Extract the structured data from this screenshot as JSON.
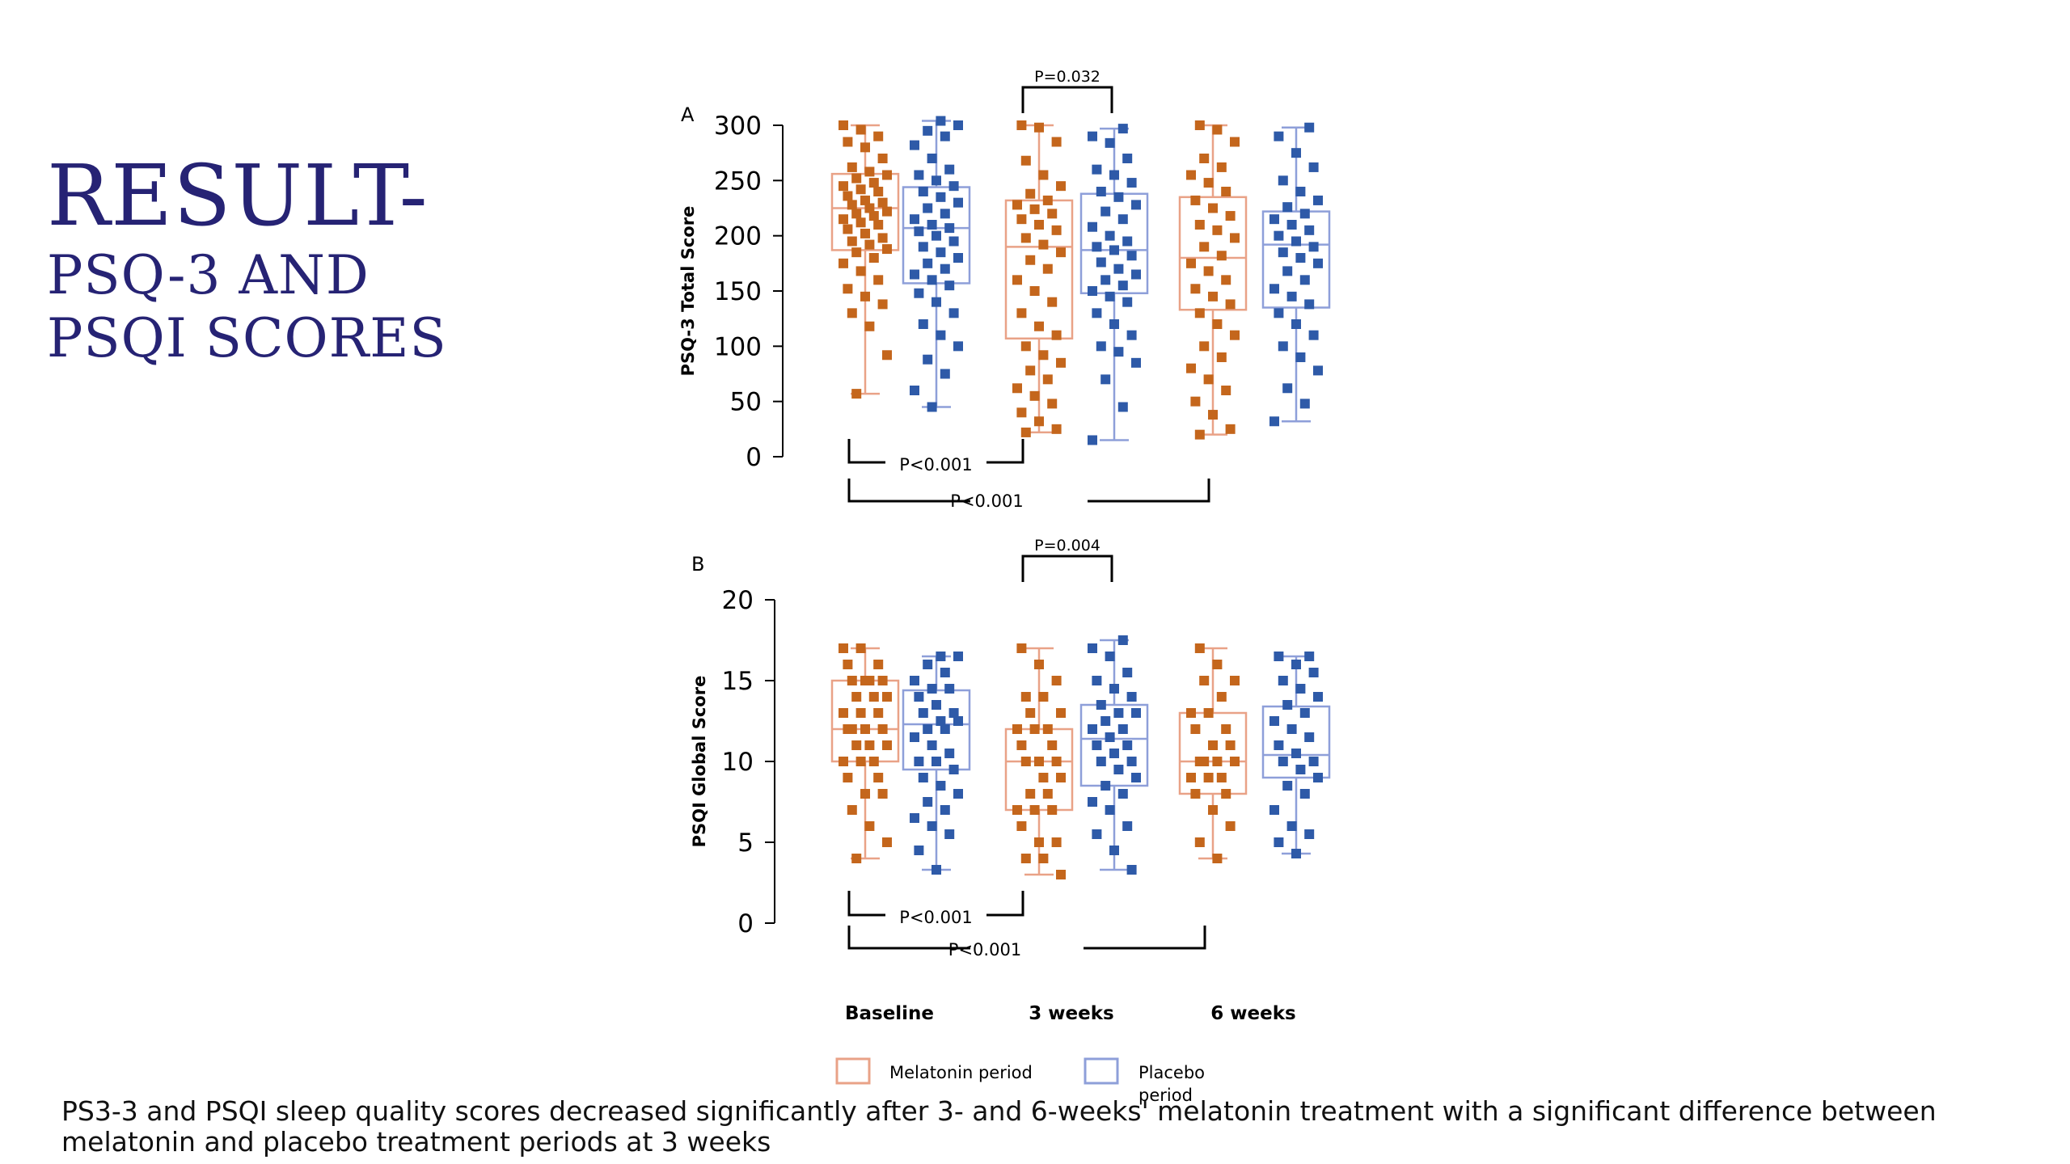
{
  "slide": {
    "title_line1": "RESULT-",
    "title_line2": "PSQ-3 AND",
    "title_line3": "PSQI SCORES",
    "caption": "PS3-3 and PSQI sleep quality scores decreased significantly after 3- and 6-weeks' melatonin treatment with a significant difference between melatonin and placebo treatment periods at 3 weeks"
  },
  "colors": {
    "melatonin_point": "#C4661C",
    "melatonin_box": "#E9A287",
    "placebo_point": "#2E5AA8",
    "placebo_box": "#8E9FD9",
    "axis": "#000000",
    "title": "#262374"
  },
  "chart_data": [
    {
      "type": "box",
      "panel_label": "A",
      "ylabel": "PSQ-3 Total Score",
      "ylim": [
        0,
        300
      ],
      "yticks": [
        0,
        50,
        100,
        150,
        200,
        250,
        300
      ],
      "groups": [
        "Baseline",
        "3 weeks",
        "6 weeks"
      ],
      "series": [
        {
          "name": "Melatonin period",
          "boxes": [
            {
              "min": 57,
              "q1": 187,
              "median": 225,
              "q3": 256,
              "max": 300,
              "points": [
                300,
                296,
                290,
                285,
                280,
                270,
                262,
                258,
                255,
                252,
                248,
                245,
                242,
                240,
                236,
                232,
                230,
                228,
                225,
                222,
                220,
                218,
                215,
                212,
                210,
                206,
                202,
                198,
                195,
                192,
                188,
                185,
                180,
                175,
                168,
                160,
                152,
                145,
                138,
                130,
                118,
                92,
                57
              ]
            },
            {
              "min": 22,
              "q1": 107,
              "median": 190,
              "q3": 232,
              "max": 300,
              "points": [
                300,
                298,
                285,
                268,
                255,
                245,
                238,
                232,
                228,
                224,
                220,
                215,
                210,
                205,
                198,
                192,
                185,
                178,
                170,
                160,
                150,
                140,
                130,
                118,
                110,
                100,
                92,
                85,
                78,
                70,
                62,
                55,
                48,
                40,
                32,
                25,
                22
              ]
            },
            {
              "min": 20,
              "q1": 133,
              "median": 180,
              "q3": 235,
              "max": 300,
              "points": [
                300,
                296,
                285,
                270,
                262,
                255,
                248,
                240,
                232,
                225,
                218,
                210,
                205,
                198,
                190,
                182,
                175,
                168,
                160,
                152,
                145,
                138,
                130,
                120,
                110,
                100,
                90,
                80,
                70,
                60,
                50,
                38,
                25,
                20
              ]
            }
          ]
        },
        {
          "name": "Placebo period",
          "boxes": [
            {
              "min": 45,
              "q1": 157,
              "median": 207,
              "q3": 244,
              "max": 304,
              "points": [
                304,
                300,
                295,
                290,
                282,
                270,
                260,
                255,
                250,
                245,
                240,
                235,
                230,
                225,
                220,
                215,
                210,
                207,
                204,
                200,
                195,
                190,
                185,
                180,
                175,
                170,
                165,
                160,
                155,
                148,
                140,
                130,
                120,
                110,
                100,
                88,
                75,
                60,
                45
              ]
            },
            {
              "min": 15,
              "q1": 148,
              "median": 187,
              "q3": 238,
              "max": 297,
              "points": [
                297,
                290,
                284,
                270,
                260,
                255,
                248,
                240,
                235,
                228,
                222,
                215,
                208,
                200,
                195,
                190,
                187,
                182,
                176,
                170,
                165,
                160,
                155,
                150,
                145,
                140,
                130,
                120,
                110,
                100,
                95,
                85,
                70,
                45,
                15
              ]
            },
            {
              "min": 32,
              "q1": 135,
              "median": 192,
              "q3": 222,
              "max": 298,
              "points": [
                298,
                290,
                275,
                262,
                250,
                240,
                232,
                226,
                220,
                215,
                210,
                205,
                200,
                195,
                190,
                185,
                180,
                175,
                168,
                160,
                152,
                145,
                138,
                130,
                120,
                110,
                100,
                90,
                78,
                62,
                48,
                32
              ]
            }
          ]
        }
      ],
      "annotations": {
        "top": "P=0.032",
        "bottom_short": "P<0.001",
        "bottom_long": "P<0.001"
      }
    },
    {
      "type": "box",
      "panel_label": "B",
      "ylabel": "PSQI Global Score",
      "ylim": [
        0,
        20
      ],
      "yticks": [
        0,
        5,
        10,
        15,
        20
      ],
      "groups": [
        "Baseline",
        "3 weeks",
        "6 weeks"
      ],
      "series": [
        {
          "name": "Melatonin period",
          "boxes": [
            {
              "min": 4,
              "q1": 10,
              "median": 12,
              "q3": 15,
              "max": 17,
              "points": [
                17,
                17,
                16,
                16,
                15,
                15,
                15,
                15,
                14,
                14,
                14,
                13,
                13,
                13,
                12,
                12,
                12,
                12,
                11,
                11,
                11,
                10,
                10,
                10,
                9,
                9,
                8,
                8,
                7,
                6,
                5,
                4
              ]
            },
            {
              "min": 3,
              "q1": 7,
              "median": 10,
              "q3": 12,
              "max": 17,
              "points": [
                17,
                16,
                15,
                14,
                14,
                13,
                13,
                12,
                12,
                12,
                11,
                11,
                10,
                10,
                10,
                9,
                9,
                8,
                8,
                7,
                7,
                7,
                6,
                5,
                5,
                4,
                4,
                3
              ]
            },
            {
              "min": 4,
              "q1": 8,
              "median": 10,
              "q3": 13,
              "max": 17,
              "points": [
                17,
                16,
                15,
                15,
                14,
                13,
                13,
                12,
                12,
                11,
                11,
                10,
                10,
                10,
                10,
                9,
                9,
                9,
                8,
                8,
                7,
                6,
                5,
                4
              ]
            }
          ]
        },
        {
          "name": "Placebo period",
          "boxes": [
            {
              "min": 3.3,
              "q1": 9.5,
              "median": 12.3,
              "q3": 14.4,
              "max": 16.5,
              "points": [
                16.5,
                16.5,
                16,
                15.5,
                15,
                14.5,
                14.5,
                14,
                13.5,
                13,
                13,
                12.5,
                12.5,
                12,
                12,
                11.5,
                11,
                10.5,
                10,
                10,
                9.5,
                9,
                8.5,
                8,
                7.5,
                7,
                6.5,
                6,
                5.5,
                4.5,
                3.3
              ]
            },
            {
              "min": 3.3,
              "q1": 8.5,
              "median": 11.4,
              "q3": 13.5,
              "max": 17.5,
              "points": [
                17.5,
                17,
                16.5,
                15.5,
                15,
                14.5,
                14,
                13.5,
                13,
                13,
                12.5,
                12,
                12,
                11.5,
                11,
                11,
                10.5,
                10,
                10,
                9.5,
                9,
                8.5,
                8,
                7.5,
                7,
                6,
                5.5,
                4.5,
                3.3
              ]
            },
            {
              "min": 4.3,
              "q1": 9,
              "median": 10.4,
              "q3": 13.4,
              "max": 16.5,
              "points": [
                16.5,
                16.5,
                16,
                15.5,
                15,
                14.5,
                14,
                13.5,
                13,
                12.5,
                12,
                11.5,
                11,
                10.5,
                10,
                10,
                9.5,
                9,
                8.5,
                8,
                7,
                6,
                5.5,
                5,
                4.3
              ]
            }
          ]
        }
      ],
      "annotations": {
        "top": "P=0.004",
        "bottom_short": "P<0.001",
        "bottom_long": "P<0.001"
      }
    }
  ],
  "legend": {
    "melatonin": "Melatonin period",
    "placebo_line1": "Placebo",
    "placebo_line2": "period"
  }
}
